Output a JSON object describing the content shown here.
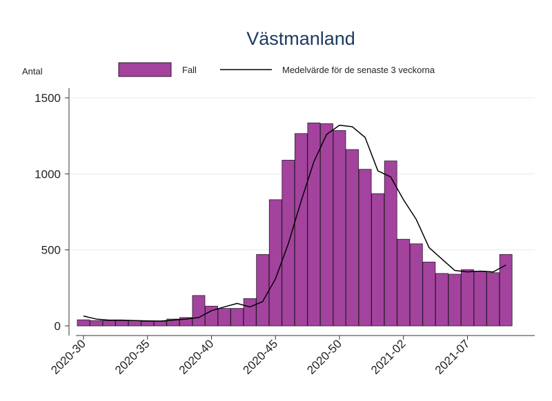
{
  "chart_data": {
    "type": "bar",
    "title": "Västmanland",
    "ylabel": "Antal",
    "xlabel": "",
    "ylim": [
      0,
      1600
    ],
    "yticks": [
      0,
      500,
      1000,
      1500
    ],
    "grid": true,
    "legend_position": "top",
    "colors": {
      "bar": "#a3439e",
      "bar_edge": "#2b1a2b",
      "line": "#000000",
      "title": "#1f3a63",
      "grid": "#e4ecec"
    },
    "x_tick_labels": [
      {
        "label": "2020-30",
        "index": 0
      },
      {
        "label": "2020-35",
        "index": 5
      },
      {
        "label": "2020-40",
        "index": 10
      },
      {
        "label": "2020-45",
        "index": 15
      },
      {
        "label": "2020-50",
        "index": 20
      },
      {
        "label": "2021-02",
        "index": 25
      },
      {
        "label": "2021-07",
        "index": 30
      }
    ],
    "categories": [
      "2020-30",
      "2020-31",
      "2020-32",
      "2020-33",
      "2020-34",
      "2020-35",
      "2020-36",
      "2020-37",
      "2020-38",
      "2020-39",
      "2020-40",
      "2020-41",
      "2020-42",
      "2020-43",
      "2020-44",
      "2020-45",
      "2020-46",
      "2020-47",
      "2020-48",
      "2020-49",
      "2020-50",
      "2020-51",
      "2020-52",
      "2020-53",
      "2021-01",
      "2021-02",
      "2021-03",
      "2021-04",
      "2021-05",
      "2021-06",
      "2021-07",
      "2021-08",
      "2021-09",
      "2021-10"
    ],
    "series": [
      {
        "name": "Fall",
        "kind": "bar",
        "values": [
          40,
          35,
          35,
          35,
          35,
          30,
          30,
          45,
          55,
          200,
          130,
          115,
          115,
          180,
          470,
          830,
          1090,
          1265,
          1335,
          1330,
          1285,
          1160,
          1030,
          870,
          1085,
          570,
          540,
          420,
          345,
          340,
          370,
          360,
          350,
          470
        ]
      },
      {
        "name": "Medelvärde för de senaste 3 veckorna",
        "kind": "line",
        "values": [
          65,
          45,
          38,
          38,
          35,
          33,
          32,
          38,
          45,
          55,
          100,
          125,
          148,
          125,
          160,
          310,
          540,
          820,
          1080,
          1260,
          1320,
          1310,
          1240,
          1020,
          980,
          830,
          700,
          515,
          440,
          365,
          355,
          360,
          355,
          400
        ]
      }
    ]
  }
}
